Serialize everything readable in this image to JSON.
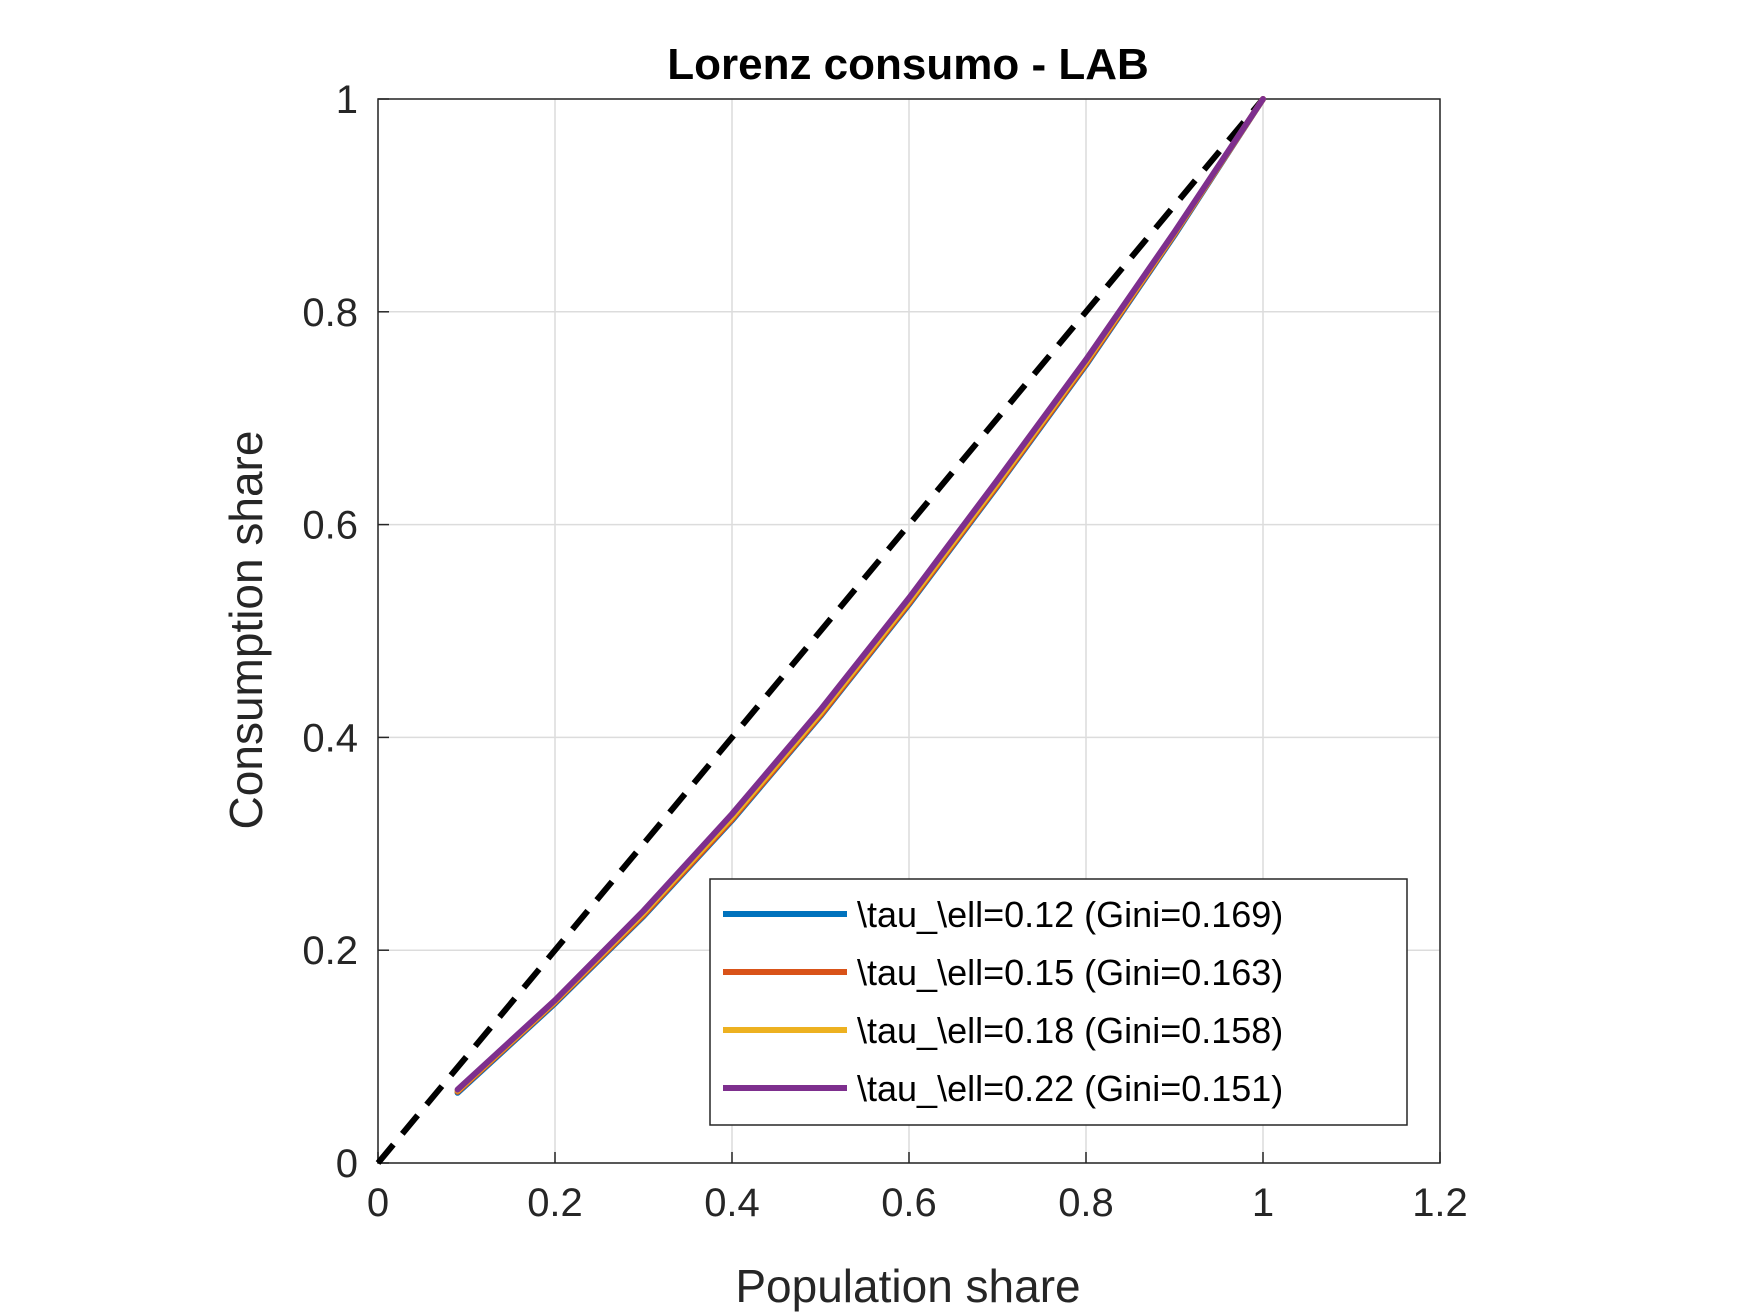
{
  "chart_data": {
    "type": "line",
    "title": "Lorenz consumo - LAB",
    "xlabel": "Population share",
    "ylabel": "Consumption share",
    "xlim": [
      0,
      1.2
    ],
    "ylim": [
      0,
      1
    ],
    "xticks": [
      0,
      0.2,
      0.4,
      0.6,
      0.8,
      1,
      1.2
    ],
    "xtick_labels": [
      "0",
      "0.2",
      "0.4",
      "0.6",
      "0.8",
      "1",
      "1.2"
    ],
    "yticks": [
      0,
      0.2,
      0.4,
      0.6,
      0.8,
      1
    ],
    "ytick_labels": [
      "0",
      "0.2",
      "0.4",
      "0.6",
      "0.8",
      "1"
    ],
    "grid": true,
    "legend_position": "bottom-right",
    "equality_line": {
      "x": [
        0,
        1
      ],
      "y": [
        0,
        1
      ],
      "color": "#000000",
      "style": "dashed"
    },
    "series": [
      {
        "name": "\\tau_\\ell=0.12 (Gini=0.169)",
        "color": "#0072BD",
        "x": [
          0.09,
          0.2,
          0.3,
          0.4,
          0.5,
          0.6,
          0.7,
          0.8,
          0.9,
          1.0
        ],
        "y": [
          0.066,
          0.15,
          0.232,
          0.322,
          0.42,
          0.525,
          0.636,
          0.75,
          0.872,
          1.0
        ]
      },
      {
        "name": "\\tau_\\ell=0.15 (Gini=0.163)",
        "color": "#D95319",
        "x": [
          0.09,
          0.2,
          0.3,
          0.4,
          0.5,
          0.6,
          0.7,
          0.8,
          0.9,
          1.0
        ],
        "y": [
          0.067,
          0.151,
          0.233,
          0.323,
          0.421,
          0.526,
          0.637,
          0.751,
          0.873,
          1.0
        ]
      },
      {
        "name": "\\tau_\\ell=0.18 (Gini=0.158)",
        "color": "#EDB120",
        "x": [
          0.09,
          0.2,
          0.3,
          0.4,
          0.5,
          0.6,
          0.7,
          0.8,
          0.9,
          1.0
        ],
        "y": [
          0.068,
          0.152,
          0.235,
          0.325,
          0.423,
          0.528,
          0.639,
          0.753,
          0.874,
          1.0
        ]
      },
      {
        "name": "\\tau_\\ell=0.22 (Gini=0.151)",
        "color": "#7E2F8E",
        "x": [
          0.09,
          0.2,
          0.3,
          0.4,
          0.5,
          0.6,
          0.7,
          0.8,
          0.9,
          1.0
        ],
        "y": [
          0.069,
          0.153,
          0.237,
          0.328,
          0.426,
          0.531,
          0.642,
          0.755,
          0.875,
          1.0
        ]
      }
    ]
  }
}
